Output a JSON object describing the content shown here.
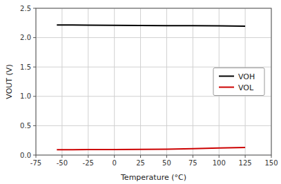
{
  "chart_data": {
    "type": "line",
    "xlabel": "Temperature (°C)",
    "ylabel": "VOUT (V)",
    "x": [
      -55,
      -40,
      -25,
      0,
      25,
      50,
      75,
      100,
      125
    ],
    "series": [
      {
        "name": "VOH",
        "color": "#000000",
        "values": [
          2.215,
          2.215,
          2.213,
          2.21,
          2.208,
          2.205,
          2.203,
          2.2,
          2.195
        ]
      },
      {
        "name": "VOL",
        "color": "#cc0000",
        "values": [
          0.09,
          0.092,
          0.093,
          0.095,
          0.097,
          0.1,
          0.108,
          0.12,
          0.13
        ]
      }
    ],
    "xlim": [
      -75,
      150
    ],
    "ylim": [
      0.0,
      2.5
    ],
    "xticks": [
      -75,
      -50,
      -25,
      0,
      25,
      50,
      75,
      100,
      125,
      150
    ],
    "yticks": [
      {
        "value": 0,
        "label": "0.0"
      },
      0.5,
      {
        "value": 1,
        "label": "1.0"
      },
      1.5,
      {
        "value": 2,
        "label": "2.0"
      },
      2.5
    ],
    "grid": true,
    "legend": "center right"
  }
}
